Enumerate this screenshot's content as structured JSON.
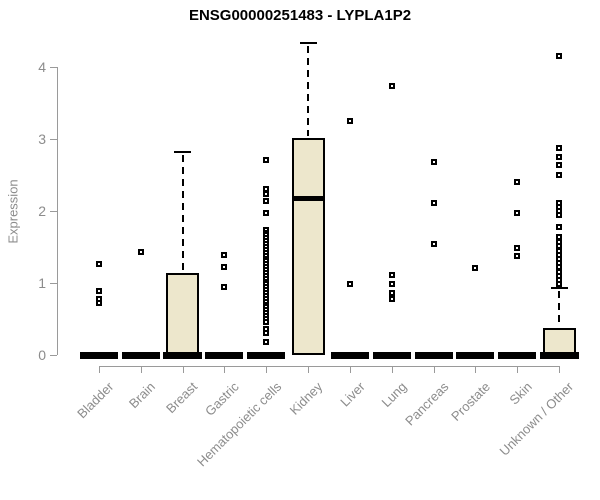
{
  "title": "ENSG00000251483 - LYPLA1P2",
  "colors": {
    "box_fill": "#EDE7CC",
    "box_stroke": "#000000",
    "axis": "#9a9a9a",
    "axis_text": "#8c8c8c",
    "title_text": "#000000",
    "background": "#ffffff"
  },
  "chart_data": {
    "type": "boxplot",
    "title": "ENSG00000251483 - LYPLA1P2",
    "xlabel": "",
    "ylabel": "Expression",
    "ylim": [
      0,
      4.4
    ],
    "yticks": [
      0,
      1,
      2,
      3,
      4
    ],
    "grid": false,
    "legend": false,
    "categories": [
      "Bladder",
      "Brain",
      "Breast",
      "Gastric",
      "Hematopoietic cells",
      "Kidney",
      "Liver",
      "Lung",
      "Pancreas",
      "Prostate",
      "Skin",
      "Unknown / Other"
    ],
    "boxes": [
      {
        "category": "Bladder",
        "q1": 0,
        "median": 0,
        "q3": 0,
        "whisker_low": 0,
        "whisker_high": 0,
        "outliers": [
          1.26,
          0.89,
          0.78,
          0.72
        ]
      },
      {
        "category": "Brain",
        "q1": 0,
        "median": 0,
        "q3": 0,
        "whisker_low": 0,
        "whisker_high": 0,
        "outliers": [
          1.43
        ]
      },
      {
        "category": "Breast",
        "q1": 0,
        "median": 0,
        "q3": 1.14,
        "whisker_low": 0,
        "whisker_high": 2.82,
        "outliers": []
      },
      {
        "category": "Gastric",
        "q1": 0,
        "median": 0,
        "q3": 0,
        "whisker_low": 0,
        "whisker_high": 0,
        "outliers": [
          1.39,
          1.22,
          0.95
        ]
      },
      {
        "category": "Hematopoietic cells",
        "q1": 0,
        "median": 0,
        "q3": 0,
        "whisker_low": 0,
        "whisker_high": 0,
        "outliers": [
          2.71,
          2.31,
          2.24,
          2.14,
          1.97,
          1.74,
          1.7,
          1.66,
          1.62,
          1.58,
          1.54,
          1.5,
          1.46,
          1.42,
          1.38,
          1.34,
          1.3,
          1.26,
          1.22,
          1.18,
          1.14,
          1.1,
          1.06,
          1.02,
          0.98,
          0.94,
          0.9,
          0.86,
          0.82,
          0.78,
          0.74,
          0.7,
          0.66,
          0.62,
          0.58,
          0.54,
          0.5,
          0.46,
          0.36,
          0.3,
          0.18
        ]
      },
      {
        "category": "Kidney",
        "q1": 0,
        "median": 2.17,
        "q3": 3.01,
        "whisker_low": 0,
        "whisker_high": 4.33,
        "outliers": []
      },
      {
        "category": "Liver",
        "q1": 0,
        "median": 0,
        "q3": 0,
        "whisker_low": 0,
        "whisker_high": 0,
        "outliers": [
          3.25,
          0.99
        ]
      },
      {
        "category": "Lung",
        "q1": 0,
        "median": 0,
        "q3": 0,
        "whisker_low": 0,
        "whisker_high": 0,
        "outliers": [
          3.74,
          1.11,
          0.99,
          0.86,
          0.78
        ]
      },
      {
        "category": "Pancreas",
        "q1": 0,
        "median": 0,
        "q3": 0,
        "whisker_low": 0,
        "whisker_high": 0,
        "outliers": [
          2.68,
          2.11,
          1.54
        ]
      },
      {
        "category": "Prostate",
        "q1": 0,
        "median": 0,
        "q3": 0,
        "whisker_low": 0,
        "whisker_high": 0,
        "outliers": [
          1.21
        ]
      },
      {
        "category": "Skin",
        "q1": 0,
        "median": 0,
        "q3": 0,
        "whisker_low": 0,
        "whisker_high": 0,
        "outliers": [
          2.4,
          1.97,
          1.49,
          1.38
        ]
      },
      {
        "category": "Unknown / Other",
        "q1": 0,
        "median": 0,
        "q3": 0.38,
        "whisker_low": 0,
        "whisker_high": 0.93,
        "outliers": [
          4.15,
          2.88,
          2.75,
          2.64,
          2.5,
          2.11,
          2.06,
          2.0,
          1.94,
          1.78,
          1.64,
          1.57,
          1.51,
          1.44,
          1.39,
          1.33,
          1.28,
          1.22,
          1.15,
          1.1,
          1.04,
          0.99
        ]
      }
    ]
  }
}
